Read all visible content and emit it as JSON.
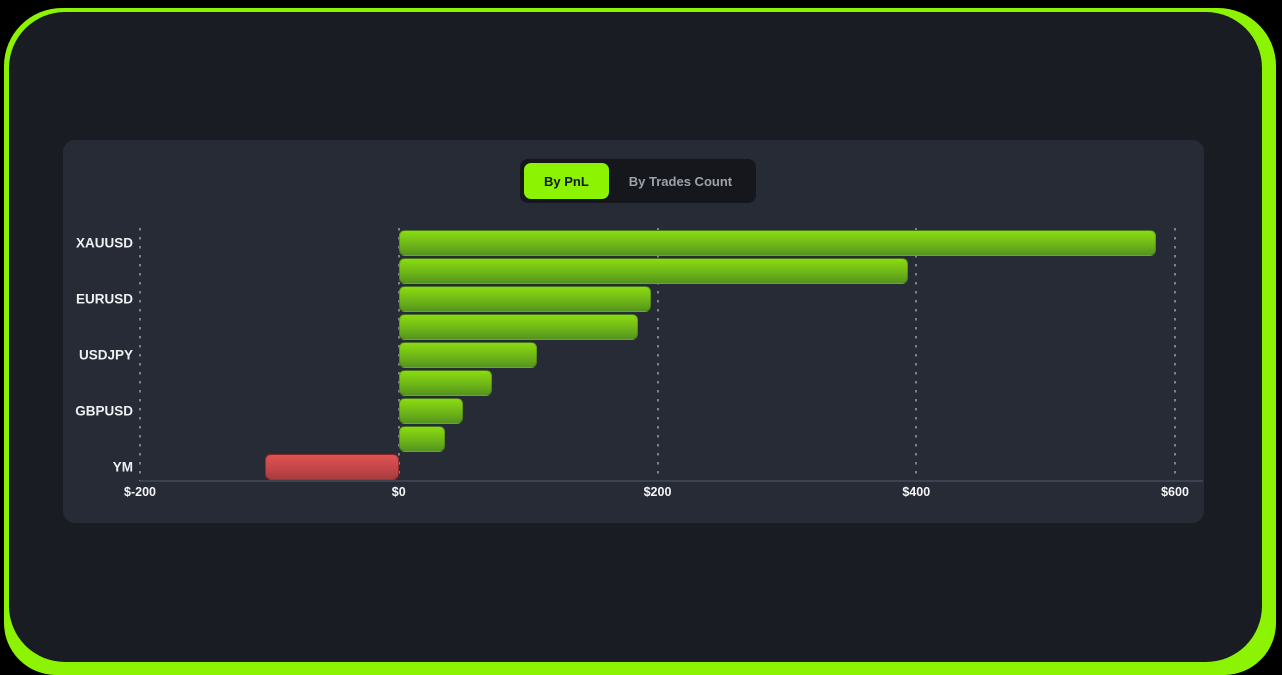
{
  "toggle": {
    "by_pnl_label": "By PnL",
    "by_trades_label": "By Trades Count"
  },
  "colors": {
    "accent": "#8CF303",
    "positive_bar_top": "#8BDB12",
    "positive_bar_bottom": "#54941E",
    "negative_bar_top": "#E05251",
    "negative_bar_bottom": "#A63C3E",
    "panel_background": "#191C23",
    "card_background": "#272B36"
  },
  "chart_data": {
    "type": "bar",
    "orientation": "horizontal",
    "title": "",
    "categories": [
      "XAUUSD",
      "",
      "EURUSD",
      "",
      "USDJPY",
      "",
      "GBPUSD",
      "",
      "YM"
    ],
    "values": [
      585,
      394,
      195,
      185,
      107,
      72,
      50,
      36,
      -103
    ],
    "xlabel": "",
    "ylabel": "",
    "xlim": [
      -200,
      600
    ],
    "x_ticks": [
      {
        "label": "$-200",
        "value": -200
      },
      {
        "label": "$0",
        "value": 0
      },
      {
        "label": "$200",
        "value": 200
      },
      {
        "label": "$400",
        "value": 400
      },
      {
        "label": "$600",
        "value": 600
      }
    ],
    "grid": "vertical-dotted",
    "legend": "none"
  }
}
